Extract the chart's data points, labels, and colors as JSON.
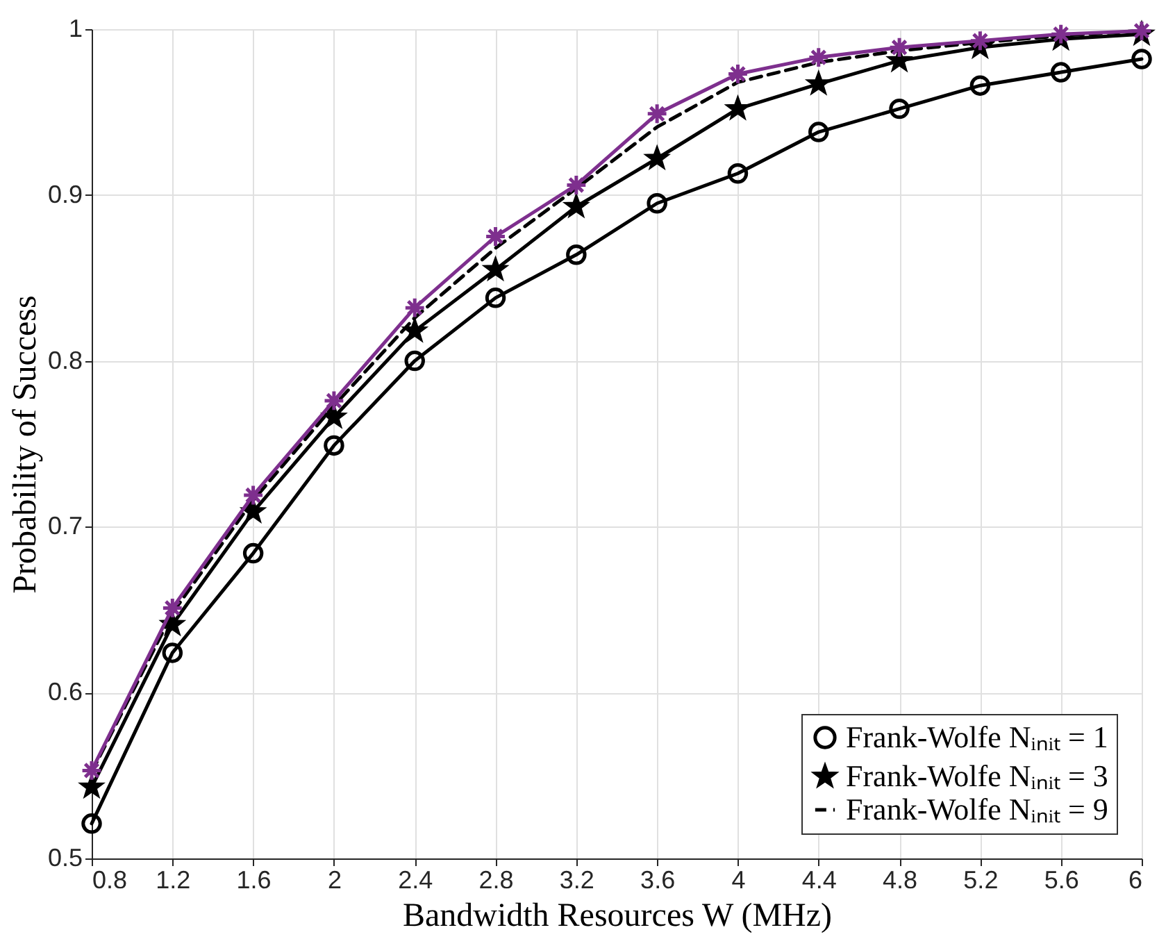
{
  "chart_data": {
    "type": "line",
    "xlabel": "Bandwidth Resources W (MHz)",
    "ylabel": "Probability of Success",
    "x": [
      0.8,
      1.2,
      1.6,
      2,
      2.4,
      2.8,
      3.2,
      3.6,
      4,
      4.4,
      4.8,
      5.2,
      5.6,
      6
    ],
    "series": [
      {
        "name": "Frank-Wolfe Nᵢₙᵢₜ = 1",
        "color": "#000000",
        "marker": "circle",
        "line_style": "solid",
        "values": [
          0.521,
          0.624,
          0.684,
          0.749,
          0.8,
          0.838,
          0.864,
          0.895,
          0.913,
          0.938,
          0.952,
          0.966,
          0.974,
          0.982
        ]
      },
      {
        "name": "Frank-Wolfe Nᵢₙᵢₜ = 3",
        "color": "#000000",
        "marker": "star",
        "line_style": "solid",
        "values": [
          0.543,
          0.641,
          0.709,
          0.766,
          0.818,
          0.855,
          0.893,
          0.922,
          0.952,
          0.967,
          0.981,
          0.989,
          0.994,
          0.997
        ]
      },
      {
        "name": "Frank-Wolfe Nᵢₙᵢₜ = 9",
        "color": "#000000",
        "marker": "none",
        "line_style": "dashed",
        "values": [
          0.552,
          0.648,
          0.716,
          0.773,
          0.826,
          0.868,
          0.904,
          0.941,
          0.968,
          0.98,
          0.987,
          0.992,
          0.996,
          0.999
        ]
      },
      {
        "color": "#7e2f8e",
        "marker": "cross",
        "line_style": "solid",
        "values": [
          0.553,
          0.651,
          0.719,
          0.776,
          0.832,
          0.875,
          0.906,
          0.949,
          0.973,
          0.983,
          0.989,
          0.993,
          0.997,
          0.999
        ]
      }
    ],
    "xlim": [
      0.8,
      6
    ],
    "xticks": [
      0.8,
      1.2,
      1.6,
      2,
      2.4,
      2.8,
      3.2,
      3.6,
      4,
      4.4,
      4.8,
      5.2,
      5.6,
      6
    ],
    "ylim": [
      0.5,
      1
    ],
    "yticks": [
      0.5,
      0.6,
      0.7,
      0.8,
      0.9,
      1
    ],
    "grid": true,
    "legend": "bottom right"
  }
}
